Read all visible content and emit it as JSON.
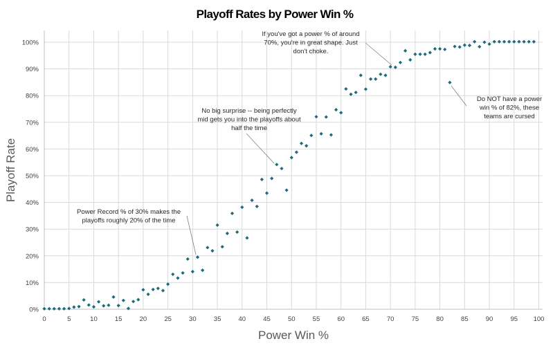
{
  "chart_data": {
    "type": "scatter",
    "title": "Playoff Rates by Power Win %",
    "xlabel": "Power Win %",
    "ylabel": "Playoff Rate",
    "xlim": [
      0,
      100
    ],
    "ylim": [
      0,
      100
    ],
    "x_ticks": [
      0,
      5,
      10,
      15,
      20,
      25,
      30,
      35,
      40,
      45,
      50,
      55,
      60,
      65,
      70,
      75,
      80,
      85,
      90,
      95,
      100
    ],
    "x_tick_labels": [
      "0",
      "5",
      "10",
      "15",
      "20",
      "25",
      "30",
      "35",
      "40",
      "45",
      "50",
      "55",
      "60",
      "65",
      "70",
      "75",
      "80",
      "85",
      "90",
      "95",
      "100"
    ],
    "y_ticks": [
      0,
      10,
      20,
      30,
      40,
      50,
      60,
      70,
      80,
      90,
      100
    ],
    "y_tick_labels": [
      "0%",
      "10%",
      "20%",
      "30%",
      "40%",
      "50%",
      "60%",
      "70%",
      "80%",
      "90%",
      "100%"
    ],
    "grid": true,
    "marker_color": "#1b6b7b",
    "series": [
      {
        "name": "Playoff Rate",
        "x": [
          0,
          1,
          2,
          3,
          4,
          5,
          6,
          7,
          8,
          9,
          10,
          11,
          12,
          13,
          14,
          15,
          16,
          17,
          18,
          19,
          20,
          21,
          22,
          23,
          24,
          25,
          26,
          27,
          28,
          29,
          30,
          31,
          32,
          33,
          34,
          35,
          36,
          37,
          38,
          39,
          40,
          41,
          42,
          43,
          44,
          45,
          46,
          47,
          48,
          49,
          50,
          51,
          52,
          53,
          54,
          55,
          56,
          57,
          58,
          59,
          60,
          61,
          62,
          63,
          64,
          65,
          66,
          67,
          68,
          69,
          70,
          71,
          72,
          73,
          74,
          75,
          76,
          77,
          78,
          79,
          80,
          81,
          82,
          83,
          84,
          85,
          86,
          87,
          88,
          89,
          90,
          91,
          92,
          93,
          94,
          95,
          96,
          97,
          98,
          99
        ],
        "values": [
          0.2,
          0.2,
          0.2,
          0.2,
          0.2,
          0.3,
          0.8,
          1.0,
          3.5,
          1.6,
          0.9,
          2.8,
          1.3,
          1.5,
          4.6,
          1.4,
          3.3,
          0.3,
          2.9,
          3.6,
          7.3,
          5.6,
          7.4,
          7.8,
          7.0,
          9.4,
          13.1,
          11.7,
          13.6,
          18.8,
          14.1,
          19.5,
          14.6,
          23.1,
          21.9,
          31.5,
          23.4,
          28.4,
          35.9,
          28.9,
          38.2,
          26.7,
          40.8,
          38.5,
          48.6,
          43.5,
          49.0,
          54.2,
          52.7,
          44.6,
          56.8,
          58.8,
          62.1,
          61.2,
          65.1,
          72.1,
          65.7,
          72.0,
          65.3,
          74.7,
          73.6,
          82.5,
          80.5,
          81.2,
          87.6,
          82.4,
          86.2,
          86.2,
          88.0,
          87.6,
          90.8,
          90.6,
          92.4,
          96.8,
          93.4,
          95.5,
          95.5,
          95.5,
          96.1,
          97.5,
          97.5,
          97.3,
          84.9,
          98.4,
          98.2,
          98.9,
          98.8,
          100.2,
          98.3,
          100.0,
          99.3,
          100.2,
          100.2,
          100.2,
          100.2,
          100.2,
          100.2,
          100.2,
          100.2,
          100.2
        ]
      }
    ],
    "annotations": [
      {
        "lines": [
          "If you've got a power % of around",
          "70%, you're in great shape. Just",
          "don't choke."
        ],
        "target": [
          71,
          90.6
        ]
      },
      {
        "lines": [
          "Do NOT have a power",
          "win % of 82%, these",
          "teams are cursed"
        ],
        "target": [
          82,
          84.9
        ]
      },
      {
        "lines": [
          "No big surprise -- being perfectly",
          "mid gets you into the playoffs about",
          "half the time"
        ],
        "target": [
          47,
          54.2
        ]
      },
      {
        "lines": [
          "Power Record % of 30% makes the",
          "playoffs roughly 20% of the time"
        ],
        "target": [
          31,
          19.5
        ]
      }
    ]
  }
}
